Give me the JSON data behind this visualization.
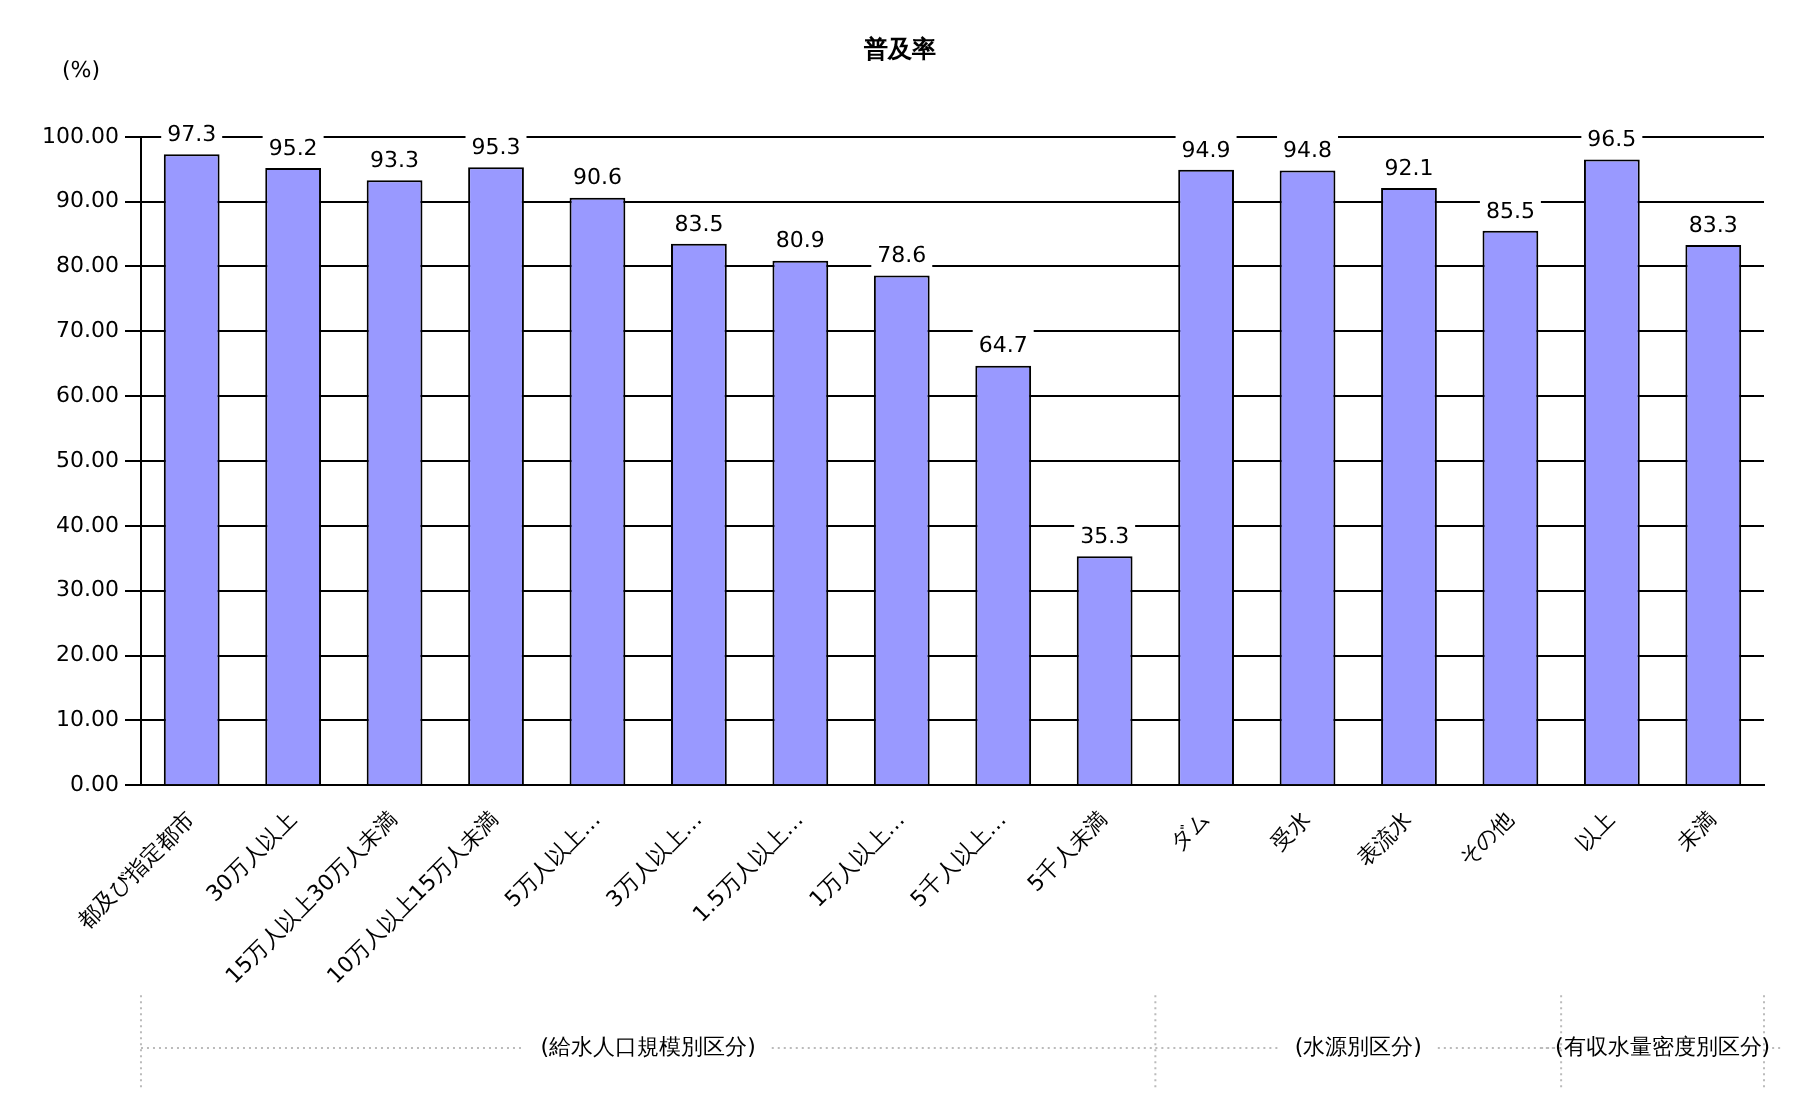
{
  "chart_data": {
    "type": "bar",
    "title": "普及率",
    "ylabel": "(%)",
    "categories": [
      "都及び指定都市",
      "30万人以上",
      "15万人以上30万人未満",
      "10万人以上15万人未満",
      "5万人以上…",
      "3万人以上…",
      "1.5万人以上…",
      "1万人以上…",
      "5千人以上…",
      "5千人未満",
      "ダム",
      "受水",
      "表流水",
      "その他",
      "以上",
      "未満"
    ],
    "values": [
      97.3,
      95.2,
      93.3,
      95.3,
      90.6,
      83.5,
      80.9,
      78.6,
      64.7,
      35.3,
      94.9,
      94.8,
      92.1,
      85.5,
      96.5,
      83.3
    ],
    "color": "#9999ff",
    "data_labels": true,
    "grid": "y",
    "legend": false,
    "ylim": [
      0,
      100
    ],
    "yticks": [
      {
        "value": 0,
        "label": "0.00"
      },
      {
        "value": 10,
        "label": "10.00"
      },
      {
        "value": 20,
        "label": "20.00"
      },
      {
        "value": 30,
        "label": "30.00"
      },
      {
        "value": 40,
        "label": "40.00"
      },
      {
        "value": 50,
        "label": "50.00"
      },
      {
        "value": 60,
        "label": "60.00"
      },
      {
        "value": 70,
        "label": "70.00"
      },
      {
        "value": 80,
        "label": "80.00"
      },
      {
        "value": 90,
        "label": "90.00"
      },
      {
        "value": 100,
        "label": "100.00"
      }
    ],
    "annotations": [
      "(給水人口規模別区分)",
      "(水源別区分)",
      "(有収水量密度別区分)"
    ]
  }
}
